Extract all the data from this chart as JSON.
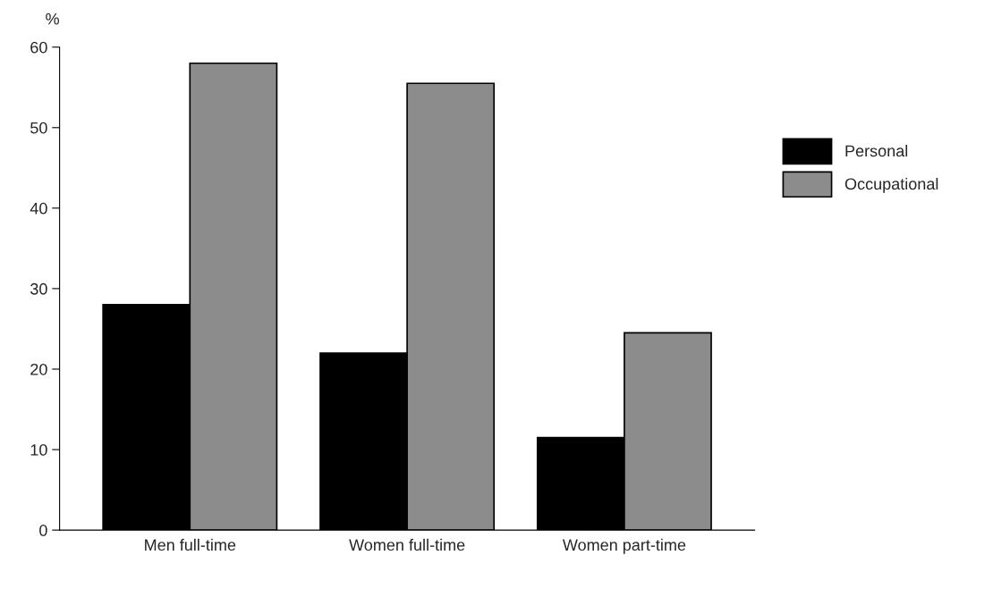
{
  "chart_data": {
    "type": "bar",
    "ylabel": "%",
    "categories": [
      "Men full-time",
      "Women full-time",
      "Women part-time"
    ],
    "series": [
      {
        "name": "Personal",
        "color": "#000000",
        "values": [
          28,
          22,
          11.5
        ]
      },
      {
        "name": "Occupational",
        "color": "#8c8c8c",
        "values": [
          58,
          55.5,
          24.5
        ]
      }
    ],
    "ylim": [
      0,
      60
    ],
    "yticks": [
      0,
      10,
      20,
      30,
      40,
      50,
      60
    ],
    "grid": false,
    "legend": "right"
  }
}
